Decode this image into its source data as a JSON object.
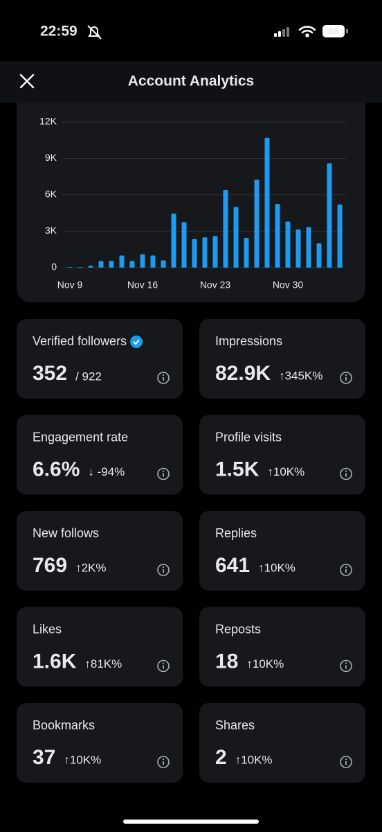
{
  "status_bar": {
    "time": "22:59",
    "battery": "88"
  },
  "header": {
    "title": "Account Analytics"
  },
  "chart_data": {
    "type": "bar",
    "color": "#1d9bf0",
    "categories": [
      "Nov 9",
      null,
      null,
      null,
      null,
      null,
      null,
      "Nov 16",
      null,
      null,
      null,
      null,
      null,
      null,
      "Nov 23",
      null,
      null,
      null,
      null,
      null,
      null,
      "Nov 30",
      null,
      null,
      null,
      null,
      null
    ],
    "values": [
      50,
      50,
      150,
      550,
      550,
      1000,
      550,
      1100,
      1000,
      600,
      4450,
      3750,
      2350,
      2500,
      2600,
      6400,
      5000,
      2450,
      7250,
      10700,
      5250,
      3800,
      3150,
      3350,
      2000,
      8600,
      5200
    ],
    "ylim": [
      0,
      12000
    ],
    "yticks": [
      0,
      {
        "value": 3000,
        "label": "3K"
      },
      {
        "value": 6000,
        "label": "6K"
      },
      {
        "value": 9000,
        "label": "9K"
      },
      {
        "value": 12000,
        "label": "12K"
      }
    ],
    "grid": true
  },
  "cards": [
    {
      "label": "Verified followers",
      "value": "352",
      "secondary": "/ 922"
    },
    {
      "label": "Impressions",
      "value": "82.9K",
      "change": "↑345K%",
      "change_color": "#2fbf71"
    },
    {
      "label": "Engagement rate",
      "value": "6.6%",
      "change": "↓ -94%",
      "change_color": "#f4475d"
    },
    {
      "label": "Profile visits",
      "value": "1.5K",
      "change": "↑10K%",
      "change_color": "#2fbf71"
    },
    {
      "label": "New follows",
      "value": "769",
      "change": "↑2K%",
      "change_color": "#2fbf71"
    },
    {
      "label": "Replies",
      "value": "641",
      "change": "↑10K%",
      "change_color": "#2fbf71"
    },
    {
      "label": "Likes",
      "value": "1.6K",
      "change": "↑81K%",
      "change_color": "#2fbf71"
    },
    {
      "label": "Reposts",
      "value": "18",
      "change": "↑10K%",
      "change_color": "#2fbf71"
    },
    {
      "label": "Bookmarks",
      "value": "37",
      "change": "↑10K%",
      "change_color": "#2fbf71"
    },
    {
      "label": "Shares",
      "value": "2",
      "change": "↑10K%",
      "change_color": "#2fbf71"
    }
  ]
}
